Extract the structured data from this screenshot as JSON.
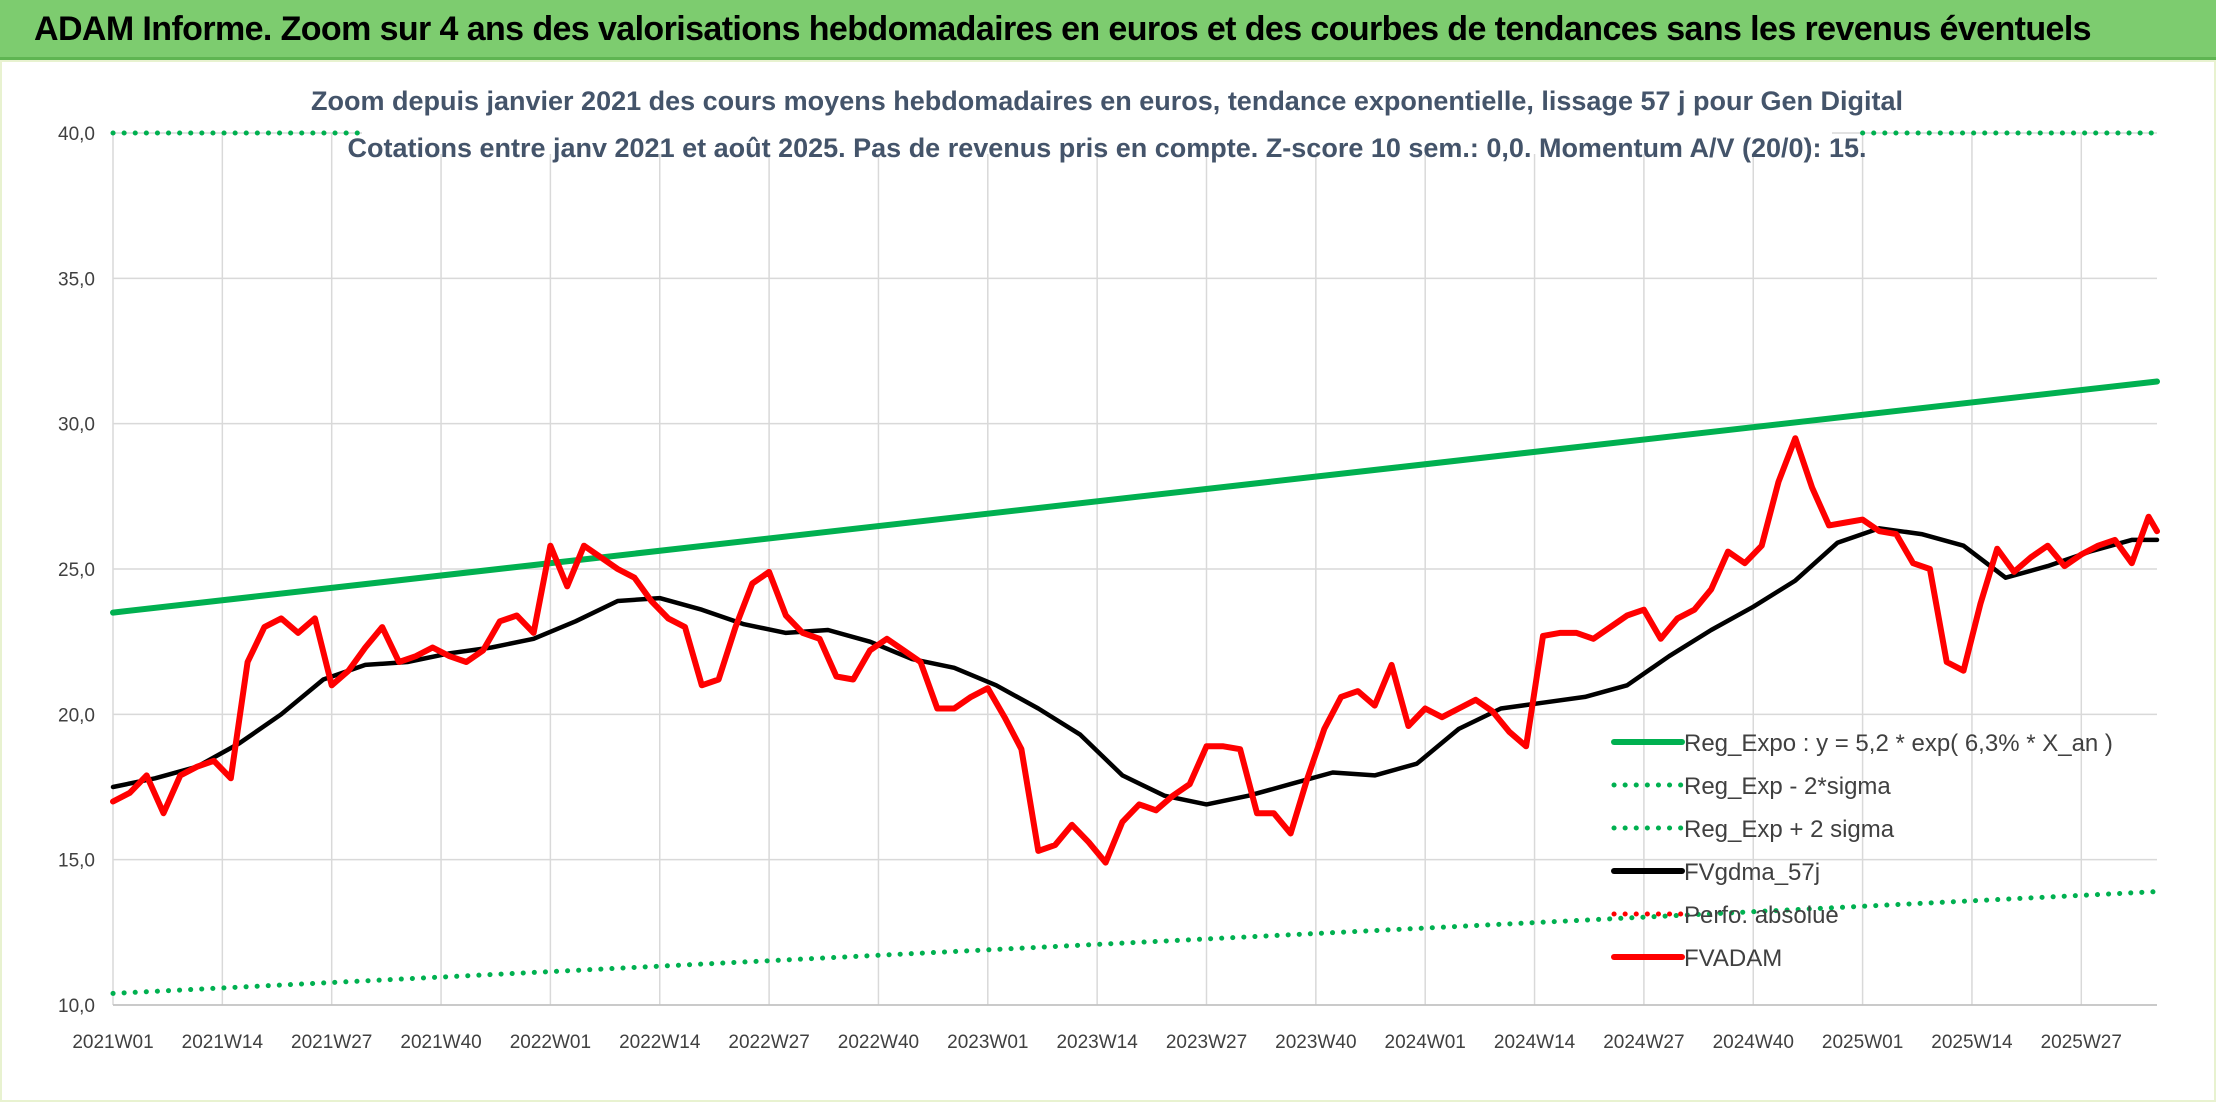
{
  "banner": {
    "title": "ADAM Informe. Zoom sur 4 ans des valorisations hebdomadaires en euros et des courbes de tendances sans les revenus éventuels"
  },
  "colors": {
    "banner_bg": "#7dcc6f",
    "trend": "#00b050",
    "smooth": "#000000",
    "price": "#ff0000"
  },
  "chart_data": {
    "type": "line",
    "title": "Zoom depuis janvier 2021 des cours moyens hebdomadaires en euros, tendance exponentielle, lissage 57 j pour Gen Digital",
    "subtitle": "Cotations entre janv 2021 et août 2025. Pas de revenus pris en compte. Z-score 10 sem.: 0,0. Momentum A/V (20/0): 15.",
    "xlabel": "",
    "ylabel": "",
    "ylim": [
      10,
      40
    ],
    "yticks": [
      "10,0",
      "15,0",
      "20,0",
      "25,0",
      "30,0",
      "35,0",
      "40,0"
    ],
    "xticks": [
      "2021W01",
      "2021W14",
      "2021W27",
      "2021W40",
      "2022W01",
      "2022W14",
      "2022W27",
      "2022W40",
      "2023W01",
      "2023W14",
      "2023W27",
      "2023W40",
      "2024W01",
      "2024W14",
      "2024W27",
      "2024W40",
      "2025W01",
      "2025W14",
      "2025W27"
    ],
    "x_weeks_total": 244,
    "grid": "vertical and horizontal",
    "legend_position": "right",
    "legend": [
      "Reg_Expo : y = 5,2 * exp( 6,3% *  X_an )",
      "Reg_Exp - 2*sigma",
      "Reg_Exp + 2 sigma",
      "FVgdma_57j",
      "Perfo. absolue",
      "FVADAM"
    ],
    "series": [
      {
        "name": "Reg_Expo : y = 5,2 * exp( 6,3% *  X_an )",
        "style": "solid",
        "color": "#00b050",
        "x": [
          0,
          243
        ],
        "y": [
          23.5,
          31.45
        ]
      },
      {
        "name": "Reg_Exp - 2*sigma",
        "style": "dotted",
        "color": "#00b050",
        "x": [
          0,
          243
        ],
        "y": [
          10.4,
          13.9
        ]
      },
      {
        "name": "Reg_Exp + 2 sigma",
        "style": "dotted",
        "color": "#00b050",
        "y_const": 40.0,
        "segments": [
          [
            0,
            30
          ],
          [
            208,
            243
          ]
        ]
      },
      {
        "name": "FVgdma_57j",
        "style": "solid",
        "color": "#000000",
        "x": [
          0,
          5,
          10,
          15,
          20,
          25,
          30,
          35,
          40,
          45,
          50,
          55,
          60,
          65,
          70,
          75,
          80,
          85,
          90,
          95,
          100,
          105,
          110,
          115,
          120,
          125,
          130,
          135,
          140,
          145,
          150,
          155,
          160,
          165,
          170,
          175,
          180,
          185,
          190,
          195,
          200,
          205,
          210,
          215,
          220,
          225,
          230,
          235,
          240,
          243
        ],
        "y": [
          17.5,
          17.8,
          18.2,
          19.0,
          20.0,
          21.2,
          21.7,
          21.8,
          22.1,
          22.3,
          22.6,
          23.2,
          23.9,
          24.0,
          23.6,
          23.1,
          22.8,
          22.9,
          22.5,
          21.9,
          21.6,
          21.0,
          20.2,
          19.3,
          17.9,
          17.2,
          16.9,
          17.2,
          17.6,
          18.0,
          17.9,
          18.3,
          19.5,
          20.2,
          20.4,
          20.6,
          21.0,
          22.0,
          22.9,
          23.7,
          24.6,
          25.9,
          26.4,
          26.2,
          25.8,
          24.7,
          25.1,
          25.6,
          26.0,
          26.0
        ]
      },
      {
        "name": "Perfo. absolue",
        "style": "dotted",
        "color": "#ff0000",
        "x": [],
        "y": []
      },
      {
        "name": "FVADAM",
        "style": "solid",
        "color": "#ff0000",
        "x": [
          0,
          2,
          4,
          6,
          8,
          10,
          12,
          14,
          16,
          18,
          20,
          22,
          24,
          26,
          28,
          30,
          32,
          34,
          36,
          38,
          40,
          42,
          44,
          46,
          48,
          50,
          52,
          54,
          56,
          58,
          60,
          62,
          64,
          66,
          68,
          70,
          72,
          74,
          76,
          78,
          80,
          82,
          84,
          86,
          88,
          90,
          92,
          94,
          96,
          98,
          100,
          102,
          104,
          106,
          108,
          110,
          112,
          114,
          116,
          118,
          120,
          122,
          124,
          126,
          128,
          130,
          132,
          134,
          136,
          138,
          140,
          142,
          144,
          146,
          148,
          150,
          152,
          154,
          156,
          158,
          160,
          162,
          164,
          166,
          168,
          170,
          172,
          174,
          176,
          178,
          180,
          182,
          184,
          186,
          188,
          190,
          192,
          194,
          196,
          198,
          200,
          202,
          204,
          206,
          208,
          210,
          212,
          214,
          216,
          218,
          220,
          222,
          224,
          226,
          228,
          230,
          232,
          234,
          236,
          238,
          240,
          242,
          243
        ],
        "y": [
          17.0,
          17.3,
          17.9,
          16.6,
          17.9,
          18.2,
          18.4,
          17.8,
          21.8,
          23.0,
          23.3,
          22.8,
          23.3,
          21.0,
          21.5,
          22.3,
          23.0,
          21.8,
          22.0,
          22.3,
          22.0,
          21.8,
          22.2,
          23.2,
          23.4,
          22.8,
          25.8,
          24.4,
          25.8,
          25.4,
          25.0,
          24.7,
          23.9,
          23.3,
          23.0,
          21.0,
          21.2,
          23.0,
          24.5,
          24.9,
          23.4,
          22.8,
          22.6,
          21.3,
          21.2,
          22.2,
          22.6,
          22.2,
          21.8,
          20.2,
          20.2,
          20.6,
          20.9,
          19.9,
          18.8,
          15.3,
          15.5,
          16.2,
          15.6,
          14.9,
          16.3,
          16.9,
          16.7,
          17.2,
          17.6,
          18.9,
          18.9,
          18.8,
          16.6,
          16.6,
          15.9,
          17.8,
          19.5,
          20.6,
          20.8,
          20.3,
          21.7,
          19.6,
          20.2,
          19.9,
          20.2,
          20.5,
          20.1,
          19.4,
          18.9,
          22.7,
          22.8,
          22.8,
          22.6,
          23.0,
          23.4,
          23.6,
          22.6,
          23.3,
          23.6,
          24.3,
          25.6,
          25.2,
          25.8,
          28.0,
          29.5,
          27.8,
          26.5,
          26.6,
          26.7,
          26.3,
          26.2,
          25.2,
          25.0,
          21.8,
          21.5,
          23.8,
          25.7,
          24.9,
          25.4,
          25.8,
          25.1,
          25.5,
          25.8,
          26.0,
          25.2,
          26.8,
          26.3
        ]
      }
    ]
  }
}
